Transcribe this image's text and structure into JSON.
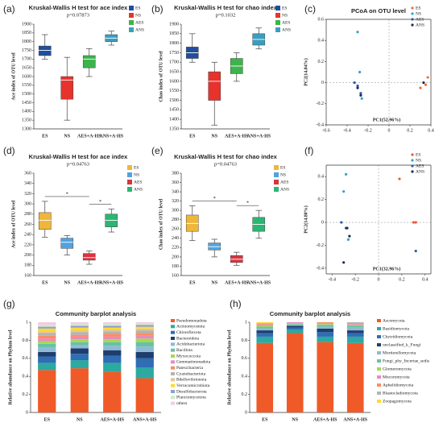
{
  "chart_data": [
    {
      "label": "(a)",
      "type": "box",
      "title": "Kruskal-Wallis H test for ace index",
      "subtitle": "p=0.07873",
      "ylabel": "Ace index of OTU level",
      "categories": [
        "ES",
        "NS",
        "AES+A-HS",
        "ANS+A-HS"
      ],
      "boxes": [
        {
          "min": 1700,
          "q1": 1720,
          "median": 1750,
          "q3": 1775,
          "max": 1840
        },
        {
          "min": 1350,
          "q1": 1470,
          "median": 1580,
          "q3": 1600,
          "max": 1710
        },
        {
          "min": 1600,
          "q1": 1650,
          "median": 1700,
          "q3": 1720,
          "max": 1760
        },
        {
          "min": 1780,
          "q1": 1800,
          "median": 1820,
          "q3": 1840,
          "max": 1860
        }
      ],
      "colors": [
        "#1f4e9c",
        "#e8322c",
        "#3cb44b",
        "#3a9fbf"
      ],
      "legend": [
        "ES",
        "NS",
        "AES",
        "ANS"
      ],
      "ylim": [
        1300,
        1900
      ],
      "yticks": [
        1300,
        1350,
        1400,
        1450,
        1500,
        1550,
        1600,
        1650,
        1700,
        1750,
        1800,
        1850,
        1900
      ]
    },
    {
      "label": "(b)",
      "type": "box",
      "title": "Kruskal-Wallis H test for chao index",
      "subtitle": "p=0.1032",
      "ylabel": "Chao index of OTU level",
      "categories": [
        "ES",
        "NS",
        "AES+A-HS",
        "ANS+A-HS"
      ],
      "boxes": [
        {
          "min": 1700,
          "q1": 1720,
          "median": 1750,
          "q3": 1780,
          "max": 1850
        },
        {
          "min": 1370,
          "q1": 1500,
          "median": 1600,
          "q3": 1650,
          "max": 1700
        },
        {
          "min": 1600,
          "q1": 1640,
          "median": 1680,
          "q3": 1720,
          "max": 1750
        },
        {
          "min": 1770,
          "q1": 1790,
          "median": 1820,
          "q3": 1850,
          "max": 1880
        }
      ],
      "colors": [
        "#1f4e9c",
        "#e8322c",
        "#3cb44b",
        "#3a9fbf"
      ],
      "legend": [
        "ES",
        "NS",
        "AES",
        "ANS"
      ],
      "ylim": [
        1350,
        1900
      ],
      "yticks": [
        1350,
        1400,
        1450,
        1500,
        1550,
        1600,
        1650,
        1700,
        1750,
        1800,
        1850,
        1900
      ]
    },
    {
      "label": "(c)",
      "type": "scatter",
      "title": "PCoA on OTU level",
      "xlabel": "PC1(52.96%)",
      "ylabel": "PC2(14.04%)",
      "xlim": [
        -0.6,
        0.4
      ],
      "xticks": [
        -0.6,
        -0.4,
        -0.2,
        0,
        0.2,
        0.4
      ],
      "ylim": [
        -0.4,
        0.6
      ],
      "yticks": [
        -0.4,
        -0.2,
        0,
        0.2,
        0.4,
        0.6
      ],
      "series": [
        {
          "name": "ES",
          "color": "#f26b38",
          "x": [
            0.3,
            0.35,
            0.37
          ],
          "y": [
            -0.05,
            -0.02,
            0.05
          ]
        },
        {
          "name": "NS",
          "color": "#3aa0c8",
          "x": [
            -0.3,
            -0.28,
            -0.26
          ],
          "y": [
            0.48,
            0.1,
            -0.15
          ]
        },
        {
          "name": "AES",
          "color": "#2a5caa",
          "x": [
            -0.33,
            -0.3,
            -0.27
          ],
          "y": [
            0.0,
            -0.03,
            -0.1
          ]
        },
        {
          "name": "ANS",
          "color": "#1d2b53",
          "x": [
            -0.3,
            -0.27,
            0.33
          ],
          "y": [
            -0.05,
            -0.12,
            0.0
          ]
        }
      ]
    },
    {
      "label": "(d)",
      "type": "box",
      "title": "Kruskal-Wallis H test for ace index",
      "subtitle": "p=0.04763",
      "ylabel": "Ace index of OTU level",
      "categories": [
        "ES",
        "NS",
        "AES+A-HS",
        "ANS+A-HS"
      ],
      "boxes": [
        {
          "min": 235,
          "q1": 250,
          "median": 268,
          "q3": 283,
          "max": 305
        },
        {
          "min": 200,
          "q1": 213,
          "median": 225,
          "q3": 233,
          "max": 238
        },
        {
          "min": 182,
          "q1": 190,
          "median": 195,
          "q3": 203,
          "max": 208
        },
        {
          "min": 245,
          "q1": 255,
          "median": 268,
          "q3": 280,
          "max": 290
        }
      ],
      "colors": [
        "#f0b63a",
        "#4fa3e0",
        "#d9343f",
        "#2bb673"
      ],
      "legend": [
        "ES",
        "NS",
        "AES",
        "ANS"
      ],
      "significance": [
        {
          "text": "*",
          "from": "ES",
          "to": "AES+A-HS"
        },
        {
          "text": "*",
          "from": "AES+A-HS",
          "to": "ANS+A-HS"
        }
      ],
      "ylim": [
        160,
        360
      ],
      "yticks": [
        160,
        180,
        200,
        220,
        240,
        260,
        280,
        300,
        320,
        340,
        360
      ]
    },
    {
      "label": "(e)",
      "type": "box",
      "title": "Kruskal-Wallis H test for chao index",
      "subtitle": "p=0.04763",
      "ylabel": "Chao index of OTU level",
      "categories": [
        "ES",
        "NS",
        "AES+A-HS",
        "ANS+A-HS"
      ],
      "boxes": [
        {
          "min": 235,
          "q1": 255,
          "median": 272,
          "q3": 290,
          "max": 310
        },
        {
          "min": 200,
          "q1": 215,
          "median": 222,
          "q3": 230,
          "max": 238
        },
        {
          "min": 182,
          "q1": 188,
          "median": 195,
          "q3": 203,
          "max": 210
        },
        {
          "min": 240,
          "q1": 255,
          "median": 270,
          "q3": 285,
          "max": 300
        }
      ],
      "colors": [
        "#f0b63a",
        "#4fa3e0",
        "#d9343f",
        "#2bb673"
      ],
      "legend": [
        "ES",
        "NS",
        "AES",
        "ANS"
      ],
      "significance": [
        {
          "text": "*",
          "from": "ES",
          "to": "AES+A-HS"
        },
        {
          "text": "*",
          "from": "AES+A-HS",
          "to": "ANS+A-HS"
        }
      ],
      "ylim": [
        160,
        380
      ],
      "yticks": [
        160,
        180,
        200,
        220,
        240,
        260,
        280,
        300,
        320,
        340,
        360,
        380
      ]
    },
    {
      "label": "(f)",
      "type": "scatter",
      "xlabel": "PC1(32.96%)",
      "ylabel": "PC2(14.80%)",
      "xlim": [
        -0.45,
        0.45
      ],
      "xticks": [
        -0.4,
        -0.2,
        0,
        0.2,
        0.4
      ],
      "ylim": [
        -0.45,
        0.5
      ],
      "yticks": [
        -0.4,
        -0.2,
        0,
        0.2,
        0.4
      ],
      "series": [
        {
          "name": "ES",
          "color": "#e8553a",
          "x": [
            0.18,
            0.3,
            0.32
          ],
          "y": [
            0.38,
            0.0,
            0.0
          ]
        },
        {
          "name": "NS",
          "color": "#3aa0c8",
          "x": [
            -0.28,
            -0.3,
            -0.26
          ],
          "y": [
            0.42,
            0.27,
            -0.15
          ]
        },
        {
          "name": "AES",
          "color": "#2a5caa",
          "x": [
            -0.32,
            0.32,
            -0.28
          ],
          "y": [
            0.0,
            -0.25,
            -0.05
          ]
        },
        {
          "name": "ANS",
          "color": "#1d2b53",
          "x": [
            -0.3,
            -0.27,
            -0.25
          ],
          "y": [
            -0.35,
            -0.05,
            -0.12
          ]
        }
      ]
    },
    {
      "label": "(g)",
      "type": "stacked_bar",
      "title": "Community barplot analysis",
      "ylabel": "Relative abundance on Phylum level",
      "categories": [
        "ES",
        "NS",
        "AES+A-HS",
        "ANS+A-HS"
      ],
      "ylim": [
        0,
        1
      ],
      "yticks": [
        0,
        0.2,
        0.4,
        0.6,
        0.8,
        1
      ],
      "series": [
        {
          "name": "Pseudomonadota",
          "color": "#f05a28",
          "values": [
            0.47,
            0.49,
            0.45,
            0.38
          ]
        },
        {
          "name": "Actinomycetota",
          "color": "#2ca9a0",
          "values": [
            0.08,
            0.09,
            0.1,
            0.12
          ]
        },
        {
          "name": "Chloroflexota",
          "color": "#2f6db5",
          "values": [
            0.07,
            0.07,
            0.08,
            0.1
          ]
        },
        {
          "name": "Bacteroidota",
          "color": "#1f3e6e",
          "values": [
            0.05,
            0.06,
            0.06,
            0.07
          ]
        },
        {
          "name": "Acidobacteriota",
          "color": "#8fb9d6",
          "values": [
            0.05,
            0.04,
            0.05,
            0.06
          ]
        },
        {
          "name": "Bacillota",
          "color": "#66c2a5",
          "values": [
            0.04,
            0.03,
            0.04,
            0.05
          ]
        },
        {
          "name": "Myxococcota",
          "color": "#a6d854",
          "values": [
            0.03,
            0.03,
            0.03,
            0.04
          ]
        },
        {
          "name": "Gemmatimonadota",
          "color": "#e78ac3",
          "values": [
            0.03,
            0.03,
            0.03,
            0.03
          ]
        },
        {
          "name": "Patescibacteria",
          "color": "#fc8d62",
          "values": [
            0.03,
            0.02,
            0.03,
            0.03
          ]
        },
        {
          "name": "Cyanobacteriota",
          "color": "#b3b3b3",
          "values": [
            0.03,
            0.03,
            0.03,
            0.03
          ]
        },
        {
          "name": "Bdellovibrionota",
          "color": "#e5c494",
          "values": [
            0.02,
            0.02,
            0.02,
            0.02
          ]
        },
        {
          "name": "Verrucomicrobiota",
          "color": "#ffd92f",
          "values": [
            0.03,
            0.03,
            0.02,
            0.02
          ]
        },
        {
          "name": "Desulfobacterota",
          "color": "#8da0cb",
          "values": [
            0.02,
            0.02,
            0.02,
            0.02
          ]
        },
        {
          "name": "Planctomycetota",
          "color": "#ccebc5",
          "values": [
            0.02,
            0.02,
            0.02,
            0.01
          ]
        },
        {
          "name": "others",
          "color": "#f4cae4",
          "values": [
            0.03,
            0.02,
            0.02,
            0.02
          ]
        }
      ]
    },
    {
      "label": "(h)",
      "type": "stacked_bar",
      "title": "Community barplot analysis",
      "ylabel": "Relative abundance on Phylum level",
      "categories": [
        "ES",
        "NS",
        "AES+A-HS",
        "ANS+A-HS"
      ],
      "ylim": [
        0,
        1
      ],
      "yticks": [
        0,
        0.2,
        0.4,
        0.6,
        0.8,
        1
      ],
      "series": [
        {
          "name": "Ascomycota",
          "color": "#f05a28",
          "values": [
            0.77,
            0.88,
            0.78,
            0.77
          ]
        },
        {
          "name": "Basidiomycota",
          "color": "#2ca9a0",
          "values": [
            0.07,
            0.04,
            0.06,
            0.07
          ]
        },
        {
          "name": "Chytridiomycota",
          "color": "#2f6db5",
          "values": [
            0.04,
            0.02,
            0.05,
            0.04
          ]
        },
        {
          "name": "unclassified_k_Fungi",
          "color": "#1f3e6e",
          "values": [
            0.03,
            0.02,
            0.04,
            0.03
          ]
        },
        {
          "name": "Mortierellomycota",
          "color": "#8fb9d6",
          "values": [
            0.02,
            0.01,
            0.02,
            0.03
          ]
        },
        {
          "name": "Fungi_phy_Incertae_sedis",
          "color": "#66c2a5",
          "values": [
            0.02,
            0.01,
            0.02,
            0.02
          ]
        },
        {
          "name": "Glomeromycota",
          "color": "#a6d854",
          "values": [
            0.01,
            0.01,
            0.01,
            0.01
          ]
        },
        {
          "name": "Mucoromycota",
          "color": "#e78ac3",
          "values": [
            0.01,
            0.01,
            0.01,
            0.01
          ]
        },
        {
          "name": "Aphelidiomycota",
          "color": "#fc8d62",
          "values": [
            0.01,
            0.0,
            0.01,
            0.01
          ]
        },
        {
          "name": "Blastocladiomycota",
          "color": "#b3b3b3",
          "values": [
            0.01,
            0.0,
            0.0,
            0.01
          ]
        },
        {
          "name": "Zoopagomycota",
          "color": "#ffd92f",
          "values": [
            0.01,
            0.0,
            0.0,
            0.0
          ]
        }
      ]
    }
  ]
}
